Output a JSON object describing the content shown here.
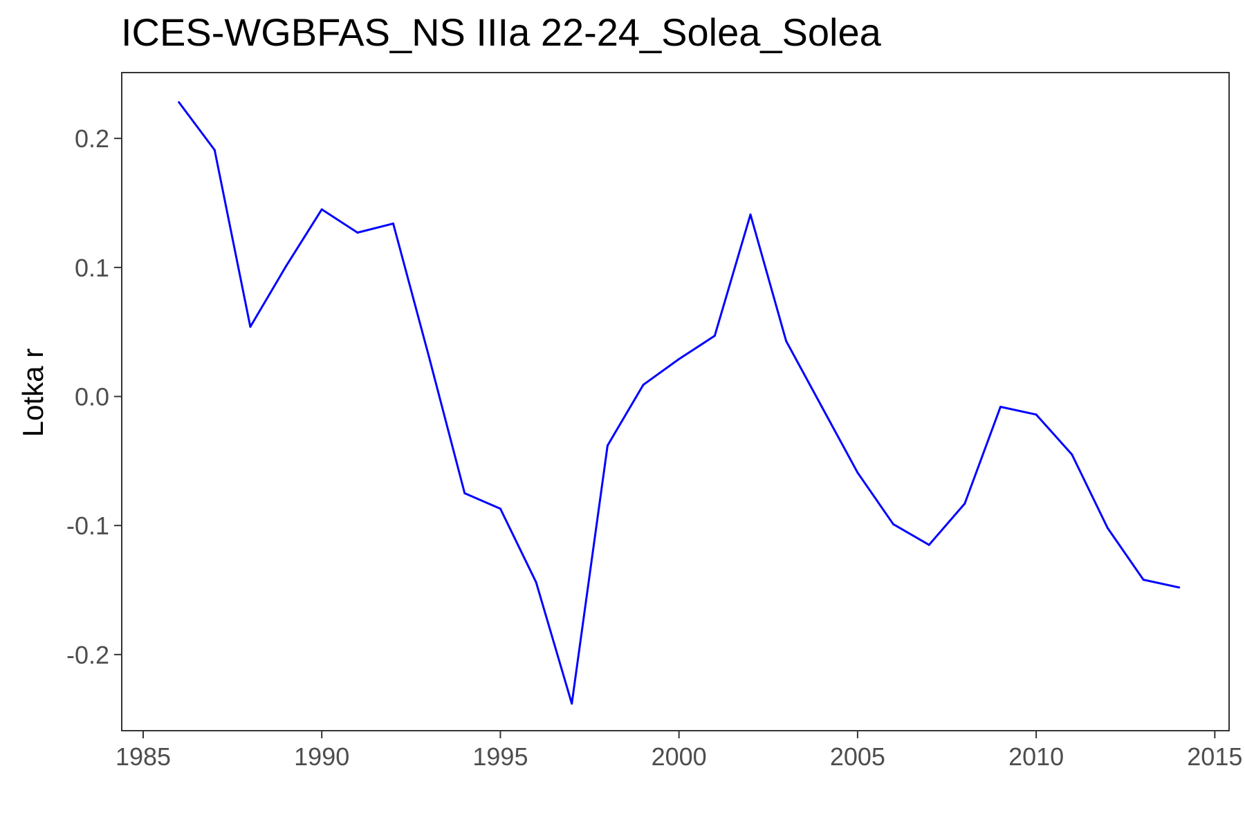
{
  "chart_data": {
    "type": "line",
    "title": "ICES-WGBFAS_NS IIIa 22-24_Solea_Solea",
    "xlabel": "",
    "ylabel": "Lotka r",
    "xlim": [
      1984.4,
      2015.4
    ],
    "ylim": [
      -0.259,
      0.251
    ],
    "x_ticks": [
      1985,
      1990,
      1995,
      2000,
      2005,
      2010,
      2015
    ],
    "y_ticks": [
      0.2,
      0.1,
      0.0,
      -0.1,
      -0.2
    ],
    "y_tick_labels": [
      "0.2",
      "0.1",
      "0.0",
      "-0.1",
      "-0.2"
    ],
    "grid": false,
    "series": [
      {
        "color": "#0000ff",
        "x": [
          1986,
          1987,
          1988,
          1989,
          1990,
          1991,
          1992,
          1993,
          1994,
          1995,
          1996,
          1997,
          1998,
          1999,
          2000,
          2001,
          2002,
          2003,
          2004,
          2005,
          2006,
          2007,
          2008,
          2009,
          2010,
          2011,
          2012,
          2013,
          2014
        ],
        "values": [
          0.228,
          0.191,
          0.054,
          0.101,
          0.145,
          0.127,
          0.134,
          0.031,
          -0.075,
          -0.087,
          -0.144,
          -0.238,
          -0.038,
          0.009,
          0.029,
          0.047,
          0.141,
          0.043,
          -0.008,
          -0.059,
          -0.099,
          -0.115,
          -0.083,
          -0.008,
          -0.014,
          -0.045,
          -0.102,
          -0.142,
          -0.148
        ]
      }
    ]
  }
}
